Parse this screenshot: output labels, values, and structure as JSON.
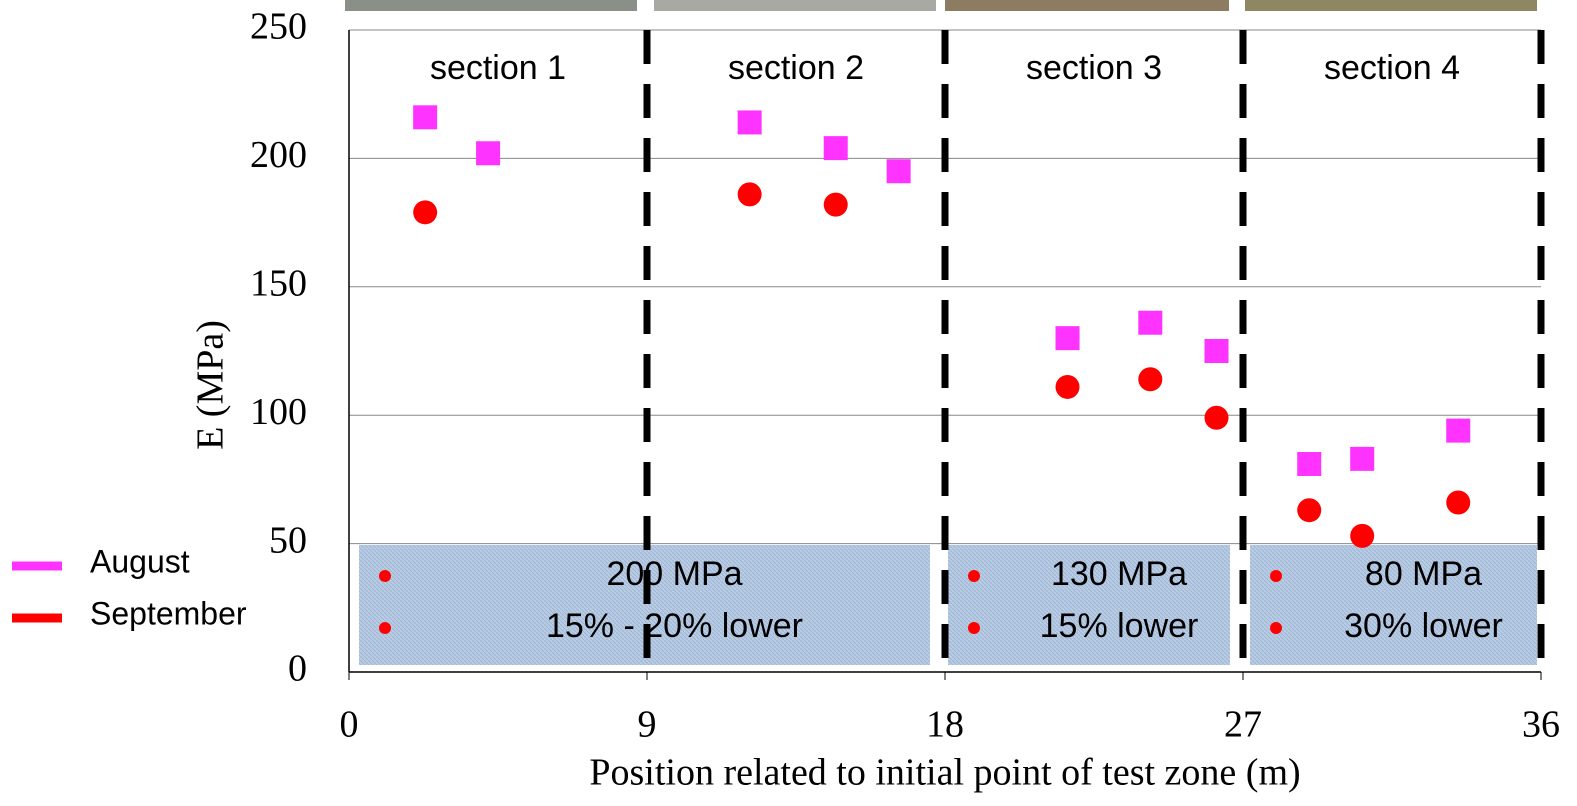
{
  "chart_data": {
    "type": "scatter",
    "x_label": "Position related to initial point of test zone (m)",
    "y_label": "E (MPa)",
    "xlim": [
      0,
      36
    ],
    "xticks": [
      0,
      9,
      18,
      27,
      36
    ],
    "ylim": [
      0,
      250
    ],
    "yticks": [
      0,
      50,
      100,
      150,
      200,
      250
    ],
    "grid": true,
    "section_boundaries": [
      9,
      18,
      27,
      36
    ],
    "sections": [
      "section 1",
      "section 2",
      "section 3",
      "section 4"
    ],
    "annotations": [
      {
        "lines": [
          "200 MPa",
          "15% - 20%  lower"
        ]
      },
      {
        "lines": [
          "130 MPa",
          "15% lower"
        ]
      },
      {
        "lines": [
          "80 MPa",
          "30% lower"
        ]
      }
    ],
    "legend": "left",
    "series": [
      {
        "name": "August",
        "color": "#ff33ff",
        "marker": "square",
        "x": [
          2.3,
          4.2,
          12.1,
          14.7,
          16.6,
          21.7,
          24.2,
          26.2,
          29.0,
          30.6,
          33.5
        ],
        "values": [
          216,
          202,
          214,
          204,
          195,
          130,
          136,
          125,
          81,
          83,
          94
        ]
      },
      {
        "name": "September",
        "color": "#ff0000",
        "marker": "circle",
        "x": [
          2.3,
          12.1,
          14.7,
          21.7,
          24.2,
          26.2,
          29.0,
          30.6,
          33.5
        ],
        "values": [
          179,
          186,
          182,
          111,
          114,
          99,
          63,
          53,
          66
        ]
      }
    ]
  }
}
